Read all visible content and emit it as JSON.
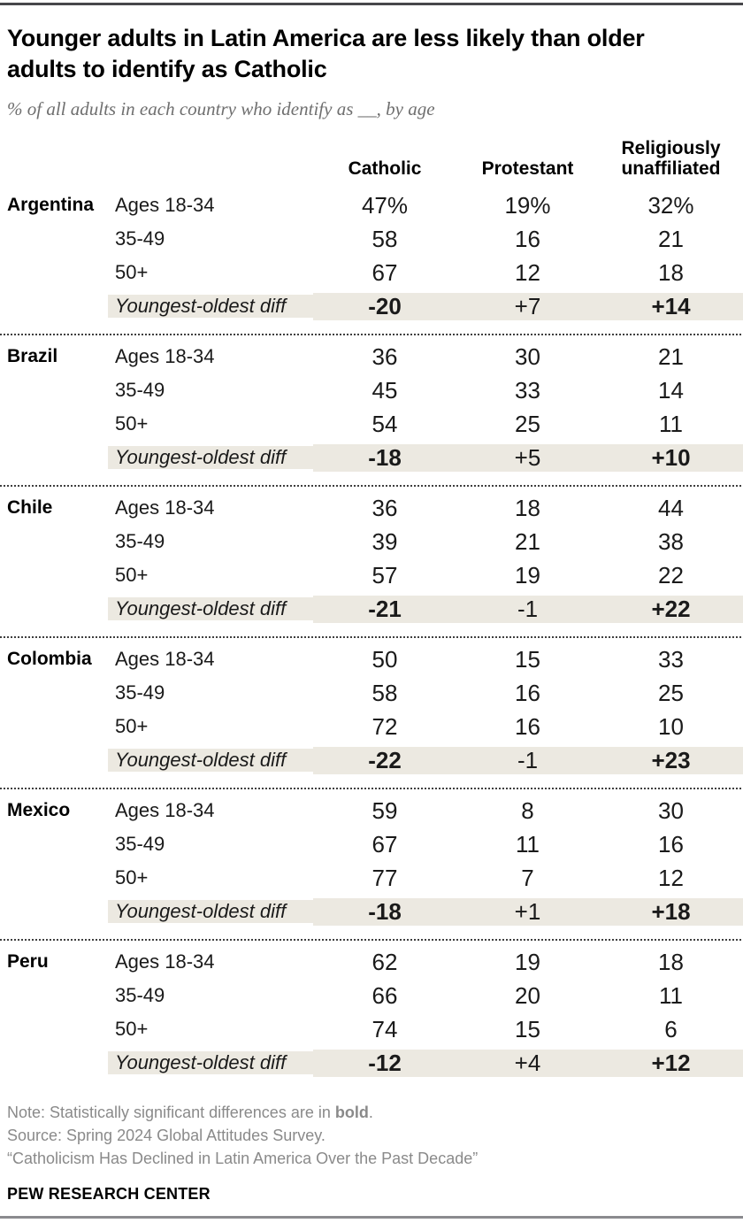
{
  "header": {
    "title": "Younger adults in Latin America are less likely than older adults to identify as Catholic",
    "subtitle": "% of all adults in each country who identify as __, by age"
  },
  "table": {
    "columns": [
      "Catholic",
      "Protestant",
      "Religiously unaffiliated"
    ],
    "age_groups": [
      "Ages 18-34",
      "35-49",
      "50+"
    ],
    "diff_label": "Youngest-oldest diff",
    "countries": [
      {
        "name": "Argentina",
        "values": [
          [
            "47%",
            "19%",
            "32%"
          ],
          [
            "58",
            "16",
            "21"
          ],
          [
            "67",
            "12",
            "18"
          ]
        ],
        "diff": [
          {
            "text": "-20",
            "bold": true
          },
          {
            "text": "+7",
            "bold": false
          },
          {
            "text": "+14",
            "bold": true
          }
        ]
      },
      {
        "name": "Brazil",
        "values": [
          [
            "36",
            "30",
            "21"
          ],
          [
            "45",
            "33",
            "14"
          ],
          [
            "54",
            "25",
            "11"
          ]
        ],
        "diff": [
          {
            "text": "-18",
            "bold": true
          },
          {
            "text": "+5",
            "bold": false
          },
          {
            "text": "+10",
            "bold": true
          }
        ]
      },
      {
        "name": "Chile",
        "values": [
          [
            "36",
            "18",
            "44"
          ],
          [
            "39",
            "21",
            "38"
          ],
          [
            "57",
            "19",
            "22"
          ]
        ],
        "diff": [
          {
            "text": "-21",
            "bold": true
          },
          {
            "text": "-1",
            "bold": false
          },
          {
            "text": "+22",
            "bold": true
          }
        ]
      },
      {
        "name": "Colombia",
        "values": [
          [
            "50",
            "15",
            "33"
          ],
          [
            "58",
            "16",
            "25"
          ],
          [
            "72",
            "16",
            "10"
          ]
        ],
        "diff": [
          {
            "text": "-22",
            "bold": true
          },
          {
            "text": "-1",
            "bold": false
          },
          {
            "text": "+23",
            "bold": true
          }
        ]
      },
      {
        "name": "Mexico",
        "values": [
          [
            "59",
            "8",
            "30"
          ],
          [
            "67",
            "11",
            "16"
          ],
          [
            "77",
            "7",
            "12"
          ]
        ],
        "diff": [
          {
            "text": "-18",
            "bold": true
          },
          {
            "text": "+1",
            "bold": false
          },
          {
            "text": "+18",
            "bold": true
          }
        ]
      },
      {
        "name": "Peru",
        "values": [
          [
            "62",
            "19",
            "18"
          ],
          [
            "66",
            "20",
            "11"
          ],
          [
            "74",
            "15",
            "6"
          ]
        ],
        "diff": [
          {
            "text": "-12",
            "bold": true
          },
          {
            "text": "+4",
            "bold": false
          },
          {
            "text": "+12",
            "bold": true
          }
        ]
      }
    ]
  },
  "footer": {
    "note_prefix": "Note: Statistically significant differences are in ",
    "note_bold": "bold",
    "note_suffix": ".",
    "source": "Source: Spring 2024 Global Attitudes Survey.",
    "report": "“Catholicism Has Declined in Latin America Over the Past Decade”",
    "brand": "PEW RESEARCH CENTER"
  },
  "colors": {
    "diff_row_shade": "#ece9e1",
    "top_rule": "#47474b",
    "bottom_rule": "#8a8a8e",
    "note_gray": "#8a8a8a"
  },
  "chart_data": {
    "type": "table",
    "title": "Younger adults in Latin America are less likely than older adults to identify as Catholic",
    "subtitle": "% of all adults in each country who identify as __, by age",
    "unit": "%",
    "columns": [
      "Catholic",
      "Protestant",
      "Religiously unaffiliated"
    ],
    "age_groups": [
      "Ages 18-34",
      "35-49",
      "50+"
    ],
    "rows": [
      {
        "country": "Argentina",
        "values": [
          [
            47,
            19,
            32
          ],
          [
            58,
            16,
            21
          ],
          [
            67,
            12,
            18
          ]
        ],
        "youngest_oldest_diff": [
          -20,
          7,
          14
        ],
        "diff_significant": [
          true,
          false,
          true
        ]
      },
      {
        "country": "Brazil",
        "values": [
          [
            36,
            30,
            21
          ],
          [
            45,
            33,
            14
          ],
          [
            54,
            25,
            11
          ]
        ],
        "youngest_oldest_diff": [
          -18,
          5,
          10
        ],
        "diff_significant": [
          true,
          false,
          true
        ]
      },
      {
        "country": "Chile",
        "values": [
          [
            36,
            18,
            44
          ],
          [
            39,
            21,
            38
          ],
          [
            57,
            19,
            22
          ]
        ],
        "youngest_oldest_diff": [
          -21,
          -1,
          22
        ],
        "diff_significant": [
          true,
          false,
          true
        ]
      },
      {
        "country": "Colombia",
        "values": [
          [
            50,
            15,
            33
          ],
          [
            58,
            16,
            25
          ],
          [
            72,
            16,
            10
          ]
        ],
        "youngest_oldest_diff": [
          -22,
          -1,
          23
        ],
        "diff_significant": [
          true,
          false,
          true
        ]
      },
      {
        "country": "Mexico",
        "values": [
          [
            59,
            8,
            30
          ],
          [
            67,
            11,
            16
          ],
          [
            77,
            7,
            12
          ]
        ],
        "youngest_oldest_diff": [
          -18,
          1,
          18
        ],
        "diff_significant": [
          true,
          false,
          true
        ]
      },
      {
        "country": "Peru",
        "values": [
          [
            62,
            19,
            18
          ],
          [
            66,
            20,
            11
          ],
          [
            74,
            15,
            6
          ]
        ],
        "youngest_oldest_diff": [
          -12,
          4,
          12
        ],
        "diff_significant": [
          true,
          false,
          true
        ]
      }
    ]
  }
}
